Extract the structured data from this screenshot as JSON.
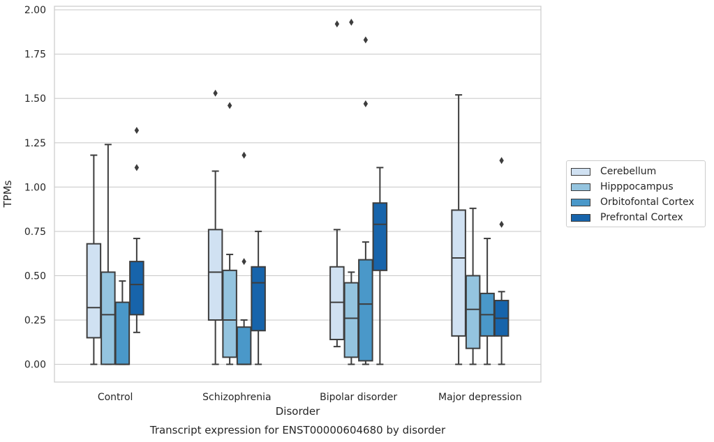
{
  "chart_data": {
    "type": "box",
    "title": "Transcript expression for ENST00000604680 by disorder",
    "xlabel": "Disorder",
    "ylabel": "TPMs",
    "ylim": [
      -0.1,
      2.02
    ],
    "yticks": [
      "0.00",
      "0.25",
      "0.50",
      "0.75",
      "1.00",
      "1.25",
      "1.50",
      "1.75",
      "2.00"
    ],
    "grid": "horizontal",
    "legend_position": "right",
    "categories": [
      "Control",
      "Schizophrenia",
      "Bipolar disorder",
      "Major depression"
    ],
    "series": [
      {
        "name": "Cerebellum",
        "color": "#d0e1f2",
        "boxes": [
          {
            "whislo": 0.0,
            "q1": 0.15,
            "med": 0.32,
            "q3": 0.68,
            "whishi": 1.18,
            "fliers": []
          },
          {
            "whislo": 0.0,
            "q1": 0.25,
            "med": 0.52,
            "q3": 0.76,
            "whishi": 1.09,
            "fliers": [
              1.53
            ]
          },
          {
            "whislo": 0.1,
            "q1": 0.14,
            "med": 0.35,
            "q3": 0.55,
            "whishi": 0.76,
            "fliers": [
              1.92
            ]
          },
          {
            "whislo": 0.0,
            "q1": 0.16,
            "med": 0.6,
            "q3": 0.87,
            "whishi": 1.52,
            "fliers": []
          }
        ]
      },
      {
        "name": "Hipppocampus",
        "color": "#94c4df",
        "boxes": [
          {
            "whislo": 0.0,
            "q1": 0.0,
            "med": 0.28,
            "q3": 0.52,
            "whishi": 1.24,
            "fliers": []
          },
          {
            "whislo": 0.0,
            "q1": 0.04,
            "med": 0.25,
            "q3": 0.53,
            "whishi": 0.62,
            "fliers": [
              1.46
            ]
          },
          {
            "whislo": 0.0,
            "q1": 0.04,
            "med": 0.26,
            "q3": 0.46,
            "whishi": 0.52,
            "fliers": [
              1.93
            ]
          },
          {
            "whislo": 0.0,
            "q1": 0.09,
            "med": 0.31,
            "q3": 0.5,
            "whishi": 0.88,
            "fliers": []
          }
        ]
      },
      {
        "name": "Orbitofontal Cortex",
        "color": "#4a98c9",
        "boxes": [
          {
            "whislo": 0.0,
            "q1": 0.0,
            "med": 0.0,
            "q3": 0.35,
            "whishi": 0.47,
            "fliers": []
          },
          {
            "whislo": 0.0,
            "q1": 0.0,
            "med": 0.0,
            "q3": 0.21,
            "whishi": 0.25,
            "fliers": [
              0.58,
              1.18
            ]
          },
          {
            "whislo": 0.0,
            "q1": 0.02,
            "med": 0.34,
            "q3": 0.59,
            "whishi": 0.69,
            "fliers": [
              1.47,
              1.83
            ]
          },
          {
            "whislo": 0.0,
            "q1": 0.16,
            "med": 0.28,
            "q3": 0.4,
            "whishi": 0.71,
            "fliers": []
          }
        ]
      },
      {
        "name": "Prefrontal Cortex",
        "color": "#1764ab",
        "boxes": [
          {
            "whislo": 0.18,
            "q1": 0.28,
            "med": 0.45,
            "q3": 0.58,
            "whishi": 0.71,
            "fliers": [
              1.11,
              1.32
            ]
          },
          {
            "whislo": 0.0,
            "q1": 0.19,
            "med": 0.46,
            "q3": 0.55,
            "whishi": 0.75,
            "fliers": []
          },
          {
            "whislo": 0.0,
            "q1": 0.53,
            "med": 0.79,
            "q3": 0.91,
            "whishi": 1.11,
            "fliers": []
          },
          {
            "whislo": 0.0,
            "q1": 0.16,
            "med": 0.26,
            "q3": 0.36,
            "whishi": 0.41,
            "fliers": [
              0.79,
              1.15
            ]
          }
        ]
      }
    ]
  }
}
